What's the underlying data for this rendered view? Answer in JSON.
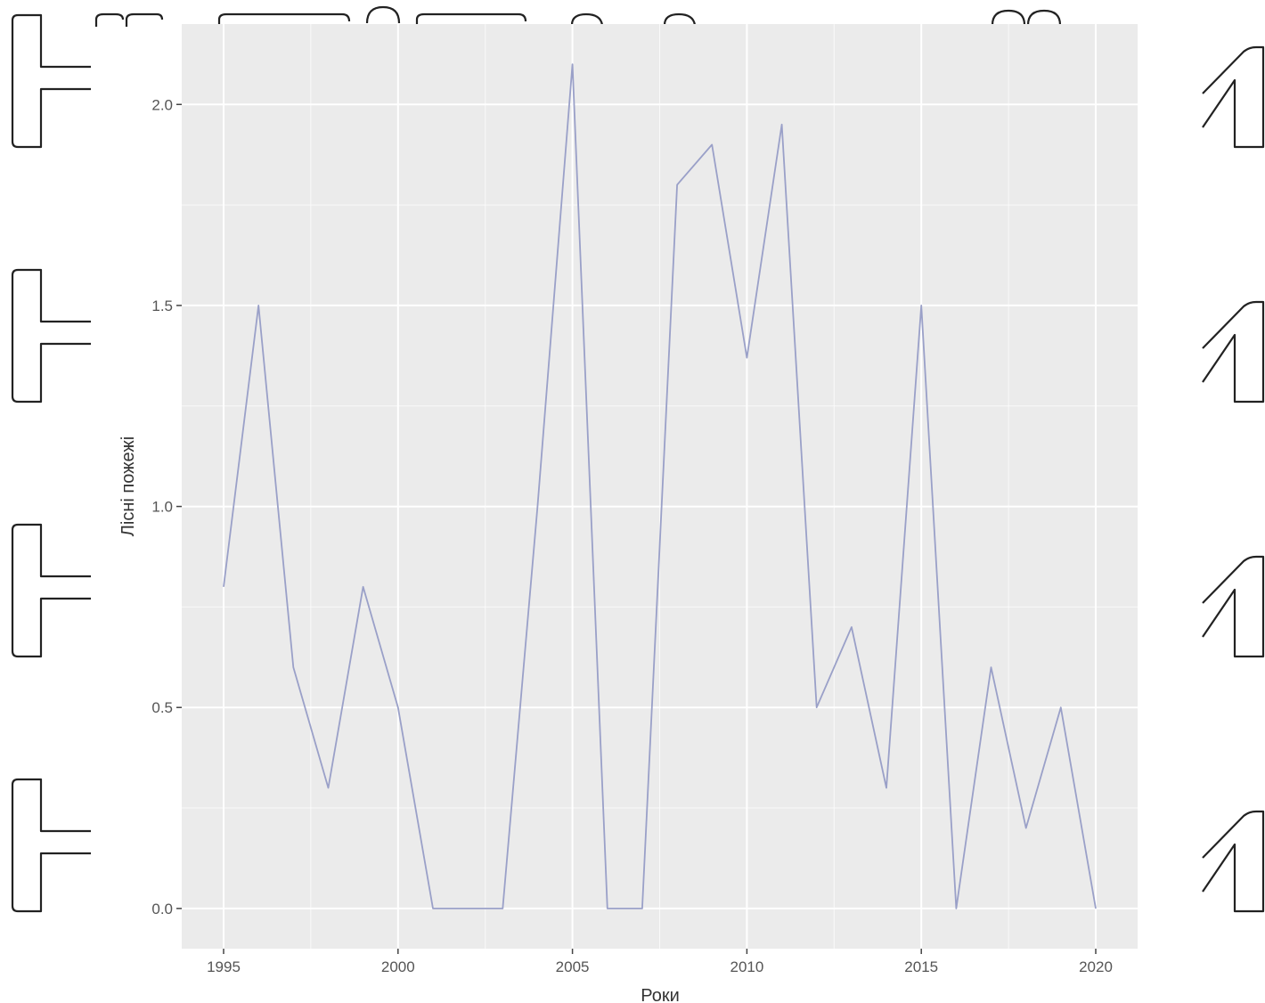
{
  "chart_data": {
    "type": "line",
    "title": "",
    "xlabel": "Роки",
    "ylabel": "Лісні пожежі",
    "x": [
      1995,
      1996,
      1997,
      1998,
      1999,
      2000,
      2001,
      2002,
      2003,
      2004,
      2005,
      2006,
      2007,
      2008,
      2009,
      2010,
      2011,
      2012,
      2013,
      2014,
      2015,
      2016,
      2017,
      2018,
      2019,
      2020
    ],
    "series": [
      {
        "values": [
          0.8,
          1.5,
          0.6,
          0.3,
          0.8,
          0.5,
          0.0,
          0.0,
          0.0,
          1.0,
          2.1,
          0.0,
          0.0,
          1.8,
          1.9,
          1.37,
          1.95,
          0.5,
          0.7,
          0.3,
          1.5,
          0.0,
          0.6,
          0.2,
          0.5,
          0.0
        ],
        "color": "#9aa0c8"
      }
    ],
    "xticks": [
      "1995",
      "2000",
      "2005",
      "2010",
      "2015",
      "2020"
    ],
    "yticks": [
      "0.0",
      "0.5",
      "1.0",
      "1.5",
      "2.0"
    ],
    "xlim": [
      1993.8,
      2021.2
    ],
    "ylim": [
      -0.1,
      2.2
    ],
    "grid": true,
    "legend": "none",
    "panel_color": "#ebebeb",
    "grid_color": "#ffffff"
  }
}
